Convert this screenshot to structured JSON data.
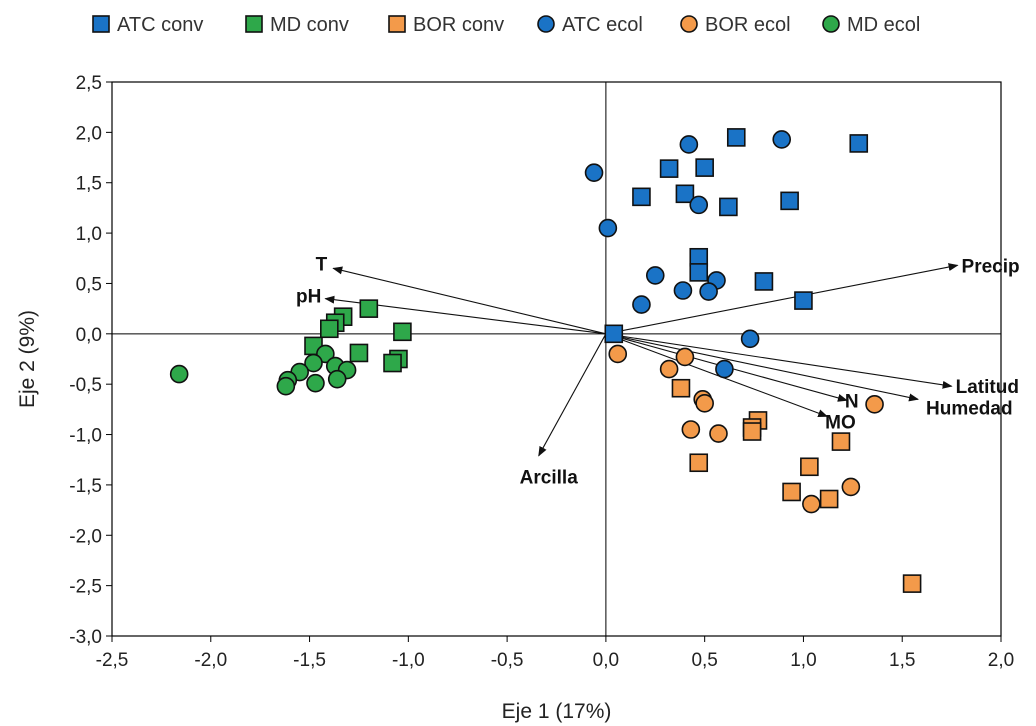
{
  "chart_data": {
    "type": "scatter",
    "xlabel": "Eje 1 (17%)",
    "ylabel": "Eje 2 (9%)",
    "xlim": [
      -2.5,
      2.0
    ],
    "ylim": [
      -3.0,
      2.5
    ],
    "xticks": [
      "-2,5",
      "-2,0",
      "-1,5",
      "-1,0",
      "-0,5",
      "0,0",
      "0,5",
      "1,0",
      "1,5",
      "2,0"
    ],
    "yticks": [
      "2,5",
      "2,0",
      "1,5",
      "1,0",
      "0,5",
      "0,0",
      "-0,5",
      "-1,0",
      "-1,5",
      "-2,0",
      "-2,5",
      "-3,0"
    ],
    "grid": false,
    "legend_position": "top",
    "series": [
      {
        "name": "ATC conv",
        "marker": "square",
        "color": "#1a73c6",
        "points": [
          [
            0.66,
            1.95
          ],
          [
            0.32,
            1.64
          ],
          [
            0.5,
            1.65
          ],
          [
            1.28,
            1.89
          ],
          [
            0.18,
            1.36
          ],
          [
            0.4,
            1.39
          ],
          [
            0.62,
            1.26
          ],
          [
            0.93,
            1.32
          ],
          [
            0.47,
            0.76
          ],
          [
            0.47,
            0.61
          ],
          [
            0.8,
            0.52
          ],
          [
            1.0,
            0.33
          ],
          [
            0.04,
            0.0
          ]
        ]
      },
      {
        "name": "MD conv",
        "marker": "square",
        "color": "#2ea84a",
        "points": [
          [
            -1.2,
            0.25
          ],
          [
            -1.33,
            0.17
          ],
          [
            -1.37,
            0.11
          ],
          [
            -1.03,
            0.02
          ],
          [
            -1.4,
            0.05
          ],
          [
            -1.48,
            -0.12
          ],
          [
            -1.25,
            -0.19
          ],
          [
            -1.05,
            -0.25
          ],
          [
            -1.08,
            -0.29
          ]
        ]
      },
      {
        "name": "BOR conv",
        "marker": "square",
        "color": "#f39a4a",
        "points": [
          [
            0.38,
            -0.54
          ],
          [
            0.77,
            -0.86
          ],
          [
            0.74,
            -0.93
          ],
          [
            0.74,
            -0.97
          ],
          [
            1.19,
            -1.07
          ],
          [
            0.47,
            -1.28
          ],
          [
            1.03,
            -1.32
          ],
          [
            0.94,
            -1.57
          ],
          [
            1.13,
            -1.64
          ],
          [
            1.55,
            -2.48
          ]
        ]
      },
      {
        "name": "ATC ecol",
        "marker": "circle",
        "color": "#1a73c6",
        "points": [
          [
            0.42,
            1.88
          ],
          [
            0.89,
            1.93
          ],
          [
            -0.06,
            1.6
          ],
          [
            0.47,
            1.28
          ],
          [
            0.01,
            1.05
          ],
          [
            0.25,
            0.58
          ],
          [
            0.56,
            0.53
          ],
          [
            0.39,
            0.43
          ],
          [
            0.52,
            0.42
          ],
          [
            0.18,
            0.29
          ],
          [
            0.73,
            -0.05
          ],
          [
            0.6,
            -0.35
          ]
        ]
      },
      {
        "name": "BOR ecol",
        "marker": "circle",
        "color": "#f39a4a",
        "points": [
          [
            0.06,
            -0.2
          ],
          [
            0.4,
            -0.23
          ],
          [
            0.32,
            -0.35
          ],
          [
            0.49,
            -0.65
          ],
          [
            0.5,
            -0.69
          ],
          [
            1.36,
            -0.7
          ],
          [
            0.43,
            -0.95
          ],
          [
            0.57,
            -0.99
          ],
          [
            1.24,
            -1.52
          ],
          [
            1.04,
            -1.69
          ]
        ]
      },
      {
        "name": "MD ecol",
        "marker": "circle",
        "color": "#2ea84a",
        "points": [
          [
            -2.16,
            -0.4
          ],
          [
            -1.42,
            -0.2
          ],
          [
            -1.48,
            -0.29
          ],
          [
            -1.37,
            -0.32
          ],
          [
            -1.55,
            -0.38
          ],
          [
            -1.31,
            -0.36
          ],
          [
            -1.36,
            -0.45
          ],
          [
            -1.61,
            -0.46
          ],
          [
            -1.47,
            -0.49
          ],
          [
            -1.62,
            -0.52
          ]
        ]
      }
    ],
    "vectors": [
      {
        "label": "Precip",
        "x": 1.78,
        "y": 0.68
      },
      {
        "label": "Latitud",
        "x": 1.75,
        "y": -0.52
      },
      {
        "label": "Humedad",
        "x": 1.58,
        "y": -0.65
      },
      {
        "label": "N",
        "x": 1.22,
        "y": -0.66
      },
      {
        "label": "MO",
        "x": 1.12,
        "y": -0.82
      },
      {
        "label": "Arcilla",
        "x": -0.34,
        "y": -1.21
      },
      {
        "label": "T",
        "x": -1.38,
        "y": 0.65
      },
      {
        "label": "pH",
        "x": -1.42,
        "y": 0.35
      }
    ]
  }
}
